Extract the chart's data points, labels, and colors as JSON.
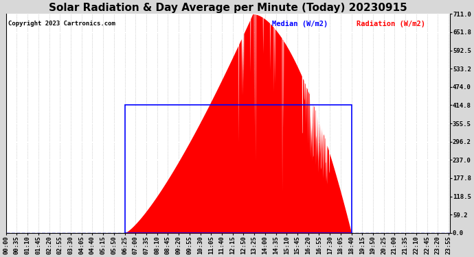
{
  "title": "Solar Radiation & Day Average per Minute (Today) 20230915",
  "copyright": "Copyright 2023 Cartronics.com",
  "legend_median": "Median (W/m2)",
  "legend_radiation": "Radiation (W/m2)",
  "yticks": [
    0.0,
    59.2,
    118.5,
    177.8,
    237.0,
    296.2,
    355.5,
    414.8,
    474.0,
    533.2,
    592.5,
    651.8,
    711.0
  ],
  "ymax": 711.0,
  "ymin": 0.0,
  "fill_color": "red",
  "median_color": "blue",
  "background_color": "#d8d8d8",
  "plot_bg_color": "white",
  "title_fontsize": 11,
  "tick_fontsize": 6.5,
  "num_minutes": 1440,
  "sunrise_minute": 385,
  "sunset_minute": 1120,
  "peak_minute": 800,
  "peak_value": 711.0,
  "median_level": 414.8,
  "xtick_step": 35
}
